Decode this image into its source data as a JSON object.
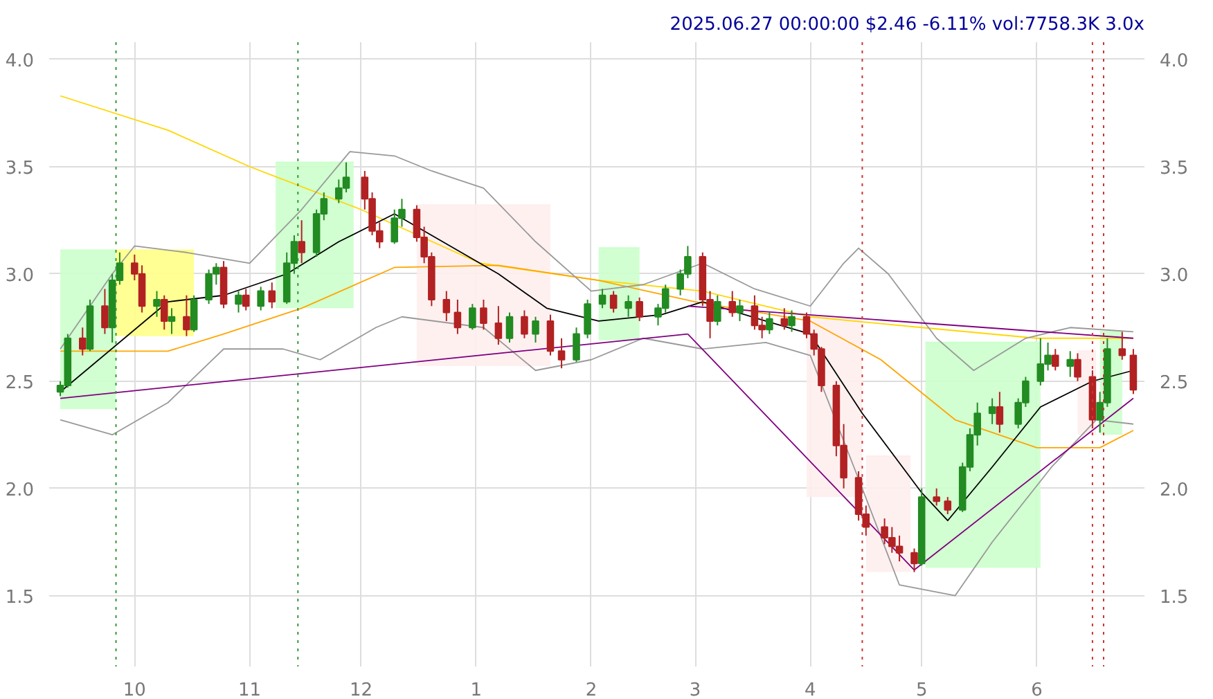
{
  "chart_data": {
    "type": "candlestick",
    "title": "2025.06.27 00:00:00 $2.46 -6.11% vol:7758.3K 3.0x",
    "x": [
      "2024-09-11",
      "2024-09-13",
      "2024-09-17",
      "2024-09-19",
      "2024-09-23",
      "2024-09-25",
      "2024-09-27",
      "2024-10-01",
      "2024-10-03",
      "2024-10-07",
      "2024-10-09",
      "2024-10-11",
      "2024-10-15",
      "2024-10-17",
      "2024-10-21",
      "2024-10-23",
      "2024-10-25",
      "2024-10-29",
      "2024-10-31",
      "2024-11-04",
      "2024-11-07",
      "2024-11-11",
      "2024-11-13",
      "2024-11-15",
      "2024-11-19",
      "2024-11-21",
      "2024-11-25",
      "2024-11-27",
      "2024-12-02",
      "2024-12-04",
      "2024-12-06",
      "2024-12-10",
      "2024-12-12",
      "2024-12-16",
      "2024-12-18",
      "2024-12-20",
      "2024-12-24",
      "2024-12-27",
      "2024-12-31",
      "2025-01-03",
      "2025-01-07",
      "2025-01-10",
      "2025-01-14",
      "2025-01-17",
      "2025-01-21",
      "2025-01-24",
      "2025-01-28",
      "2025-01-31",
      "2025-02-04",
      "2025-02-07",
      "2025-02-11",
      "2025-02-14",
      "2025-02-19",
      "2025-02-21",
      "2025-02-25",
      "2025-02-27",
      "2025-03-03",
      "2025-03-05",
      "2025-03-07",
      "2025-03-11",
      "2025-03-13",
      "2025-03-17",
      "2025-03-19",
      "2025-03-21",
      "2025-03-25",
      "2025-03-27",
      "2025-03-31",
      "2025-04-02",
      "2025-04-04",
      "2025-04-08",
      "2025-04-10",
      "2025-04-14",
      "2025-04-16",
      "2025-04-21",
      "2025-04-23",
      "2025-04-25",
      "2025-04-29",
      "2025-05-01",
      "2025-05-05",
      "2025-05-08",
      "2025-05-12",
      "2025-05-14",
      "2025-05-16",
      "2025-05-20",
      "2025-05-22",
      "2025-05-27",
      "2025-05-29",
      "2025-06-02",
      "2025-06-04",
      "2025-06-06",
      "2025-06-10",
      "2025-06-12",
      "2025-06-16",
      "2025-06-18",
      "2025-06-20",
      "2025-06-24",
      "2025-06-27"
    ],
    "ohlc": [
      [
        2.45,
        2.5,
        2.43,
        2.48
      ],
      [
        2.48,
        2.72,
        2.47,
        2.7
      ],
      [
        2.7,
        2.75,
        2.62,
        2.65
      ],
      [
        2.65,
        2.88,
        2.64,
        2.85
      ],
      [
        2.85,
        2.93,
        2.72,
        2.75
      ],
      [
        2.75,
        3.0,
        2.68,
        2.97
      ],
      [
        2.97,
        3.1,
        2.95,
        3.05
      ],
      [
        3.05,
        3.09,
        2.97,
        3.0
      ],
      [
        3.0,
        3.04,
        2.82,
        2.85
      ],
      [
        2.85,
        2.92,
        2.8,
        2.88
      ],
      [
        2.88,
        2.9,
        2.74,
        2.78
      ],
      [
        2.78,
        2.84,
        2.72,
        2.8
      ],
      [
        2.8,
        2.9,
        2.71,
        2.74
      ],
      [
        2.74,
        2.9,
        2.73,
        2.88
      ],
      [
        2.88,
        3.02,
        2.86,
        3.0
      ],
      [
        3.0,
        3.05,
        2.95,
        3.03
      ],
      [
        3.03,
        3.06,
        2.84,
        2.86
      ],
      [
        2.86,
        2.92,
        2.82,
        2.9
      ],
      [
        2.9,
        2.93,
        2.83,
        2.85
      ],
      [
        2.85,
        2.94,
        2.83,
        2.92
      ],
      [
        2.92,
        2.96,
        2.84,
        2.87
      ],
      [
        2.87,
        3.1,
        2.86,
        3.05
      ],
      [
        3.05,
        3.18,
        3.0,
        3.15
      ],
      [
        3.15,
        3.25,
        3.05,
        3.1
      ],
      [
        3.1,
        3.3,
        3.08,
        3.28
      ],
      [
        3.28,
        3.38,
        3.25,
        3.35
      ],
      [
        3.35,
        3.44,
        3.33,
        3.4
      ],
      [
        3.4,
        3.52,
        3.38,
        3.45
      ],
      [
        3.45,
        3.48,
        3.3,
        3.35
      ],
      [
        3.35,
        3.38,
        3.18,
        3.2
      ],
      [
        3.2,
        3.24,
        3.12,
        3.15
      ],
      [
        3.15,
        3.3,
        3.14,
        3.26
      ],
      [
        3.26,
        3.35,
        3.22,
        3.3
      ],
      [
        3.3,
        3.32,
        3.15,
        3.17
      ],
      [
        3.17,
        3.22,
        3.05,
        3.08
      ],
      [
        3.08,
        3.1,
        2.85,
        2.88
      ],
      [
        2.88,
        2.92,
        2.78,
        2.82
      ],
      [
        2.82,
        2.88,
        2.72,
        2.75
      ],
      [
        2.75,
        2.86,
        2.74,
        2.84
      ],
      [
        2.84,
        2.88,
        2.74,
        2.77
      ],
      [
        2.77,
        2.85,
        2.67,
        2.7
      ],
      [
        2.7,
        2.82,
        2.68,
        2.8
      ],
      [
        2.8,
        2.83,
        2.7,
        2.72
      ],
      [
        2.72,
        2.8,
        2.68,
        2.78
      ],
      [
        2.78,
        2.81,
        2.62,
        2.64
      ],
      [
        2.64,
        2.7,
        2.56,
        2.6
      ],
      [
        2.6,
        2.75,
        2.59,
        2.72
      ],
      [
        2.72,
        2.88,
        2.7,
        2.86
      ],
      [
        2.86,
        2.93,
        2.84,
        2.9
      ],
      [
        2.9,
        2.92,
        2.82,
        2.84
      ],
      [
        2.84,
        2.9,
        2.8,
        2.87
      ],
      [
        2.87,
        2.89,
        2.78,
        2.8
      ],
      [
        2.8,
        2.86,
        2.76,
        2.84
      ],
      [
        2.84,
        2.95,
        2.82,
        2.93
      ],
      [
        2.93,
        3.02,
        2.9,
        3.0
      ],
      [
        3.0,
        3.13,
        2.98,
        3.08
      ],
      [
        3.08,
        3.1,
        2.85,
        2.88
      ],
      [
        2.88,
        2.92,
        2.7,
        2.78
      ],
      [
        2.78,
        2.9,
        2.76,
        2.87
      ],
      [
        2.87,
        2.92,
        2.8,
        2.82
      ],
      [
        2.82,
        2.88,
        2.78,
        2.85
      ],
      [
        2.85,
        2.9,
        2.74,
        2.76
      ],
      [
        2.76,
        2.8,
        2.7,
        2.74
      ],
      [
        2.74,
        2.82,
        2.72,
        2.79
      ],
      [
        2.79,
        2.84,
        2.74,
        2.76
      ],
      [
        2.76,
        2.83,
        2.73,
        2.8
      ],
      [
        2.8,
        2.82,
        2.7,
        2.72
      ],
      [
        2.72,
        2.74,
        2.62,
        2.65
      ],
      [
        2.65,
        2.66,
        2.45,
        2.48
      ],
      [
        2.48,
        2.5,
        2.15,
        2.2
      ],
      [
        2.2,
        2.3,
        2.0,
        2.05
      ],
      [
        2.05,
        2.08,
        1.85,
        1.88
      ],
      [
        1.88,
        1.92,
        1.78,
        1.82
      ],
      [
        1.82,
        1.86,
        1.74,
        1.77
      ],
      [
        1.77,
        1.82,
        1.7,
        1.73
      ],
      [
        1.73,
        1.78,
        1.66,
        1.7
      ],
      [
        1.7,
        1.72,
        1.61,
        1.65
      ],
      [
        1.65,
        2.0,
        1.64,
        1.96
      ],
      [
        1.96,
        2.0,
        1.92,
        1.94
      ],
      [
        1.94,
        1.96,
        1.88,
        1.9
      ],
      [
        1.9,
        2.12,
        1.89,
        2.1
      ],
      [
        2.1,
        2.28,
        2.08,
        2.25
      ],
      [
        2.25,
        2.4,
        2.2,
        2.35
      ],
      [
        2.35,
        2.42,
        2.3,
        2.38
      ],
      [
        2.38,
        2.45,
        2.26,
        2.3
      ],
      [
        2.3,
        2.42,
        2.28,
        2.4
      ],
      [
        2.4,
        2.52,
        2.38,
        2.5
      ],
      [
        2.5,
        2.7,
        2.48,
        2.58
      ],
      [
        2.58,
        2.68,
        2.55,
        2.62
      ],
      [
        2.62,
        2.65,
        2.55,
        2.57
      ],
      [
        2.57,
        2.64,
        2.52,
        2.6
      ],
      [
        2.6,
        2.63,
        2.5,
        2.52
      ],
      [
        2.52,
        2.55,
        2.28,
        2.32
      ],
      [
        2.32,
        2.45,
        2.26,
        2.4
      ],
      [
        2.4,
        2.7,
        2.38,
        2.65
      ],
      [
        2.65,
        2.73,
        2.6,
        2.62
      ],
      [
        2.62,
        2.65,
        2.44,
        2.46
      ]
    ],
    "series": [
      {
        "type": "line",
        "color": "#ccffcc",
        "x": [
          "2024-09-11",
          "2024-09-26"
        ],
        "values": [
          3.11,
          3.11
        ],
        "lower": [
          2.37,
          2.37
        ],
        "upper": [
          3.11,
          3.11
        ]
      },
      {
        "type": "line",
        "color": "#ffff88",
        "x": [
          "2024-09-26",
          "2024-10-17"
        ],
        "values": [
          3.11,
          3.11
        ],
        "lower": [
          2.71,
          2.71
        ],
        "upper": [
          3.11,
          3.11
        ]
      },
      {
        "type": "line",
        "color": "#ccffcc",
        "x": [
          "2024-11-08",
          "2024-11-29"
        ],
        "values": [
          3.52,
          3.52
        ],
        "lower": [
          2.84,
          2.84
        ],
        "upper": [
          3.52,
          3.52
        ]
      },
      {
        "type": "line",
        "color": "#ffeeee",
        "x": [
          "2024-12-16",
          "2025-01-21"
        ],
        "values": [
          3.32,
          3.32
        ],
        "lower": [
          2.57,
          2.57
        ],
        "upper": [
          3.32,
          3.32
        ]
      },
      {
        "type": "line",
        "color": "#ccffcc",
        "x": [
          "2025-02-03",
          "2025-02-14"
        ],
        "values": [
          3.12,
          3.12
        ],
        "lower": [
          2.69,
          2.69
        ],
        "upper": [
          3.12,
          3.12
        ]
      },
      {
        "type": "line",
        "color": "#ffeeee",
        "x": [
          "2025-03-31",
          "2025-04-15"
        ],
        "values": [
          2.8,
          2.8
        ],
        "lower": [
          1.96,
          1.96
        ],
        "upper": [
          2.8,
          2.8
        ]
      },
      {
        "type": "line",
        "color": "#ffeeee",
        "x": [
          "2025-04-16",
          "2025-04-28"
        ],
        "values": [
          2.15,
          2.15
        ],
        "lower": [
          1.61,
          1.61
        ],
        "upper": [
          2.15,
          2.15
        ]
      },
      {
        "type": "line",
        "color": "#ccffcc",
        "x": [
          "2025-05-02",
          "2025-06-02"
        ],
        "values": [
          2.68,
          2.68
        ],
        "lower": [
          1.63,
          1.63
        ],
        "upper": [
          2.68,
          2.68
        ]
      },
      {
        "type": "line",
        "color": "#ffeeee",
        "x": [
          "2025-06-12",
          "2025-06-17"
        ],
        "values": [
          2.64,
          2.64
        ],
        "lower": [
          2.25,
          2.25
        ],
        "upper": [
          2.64,
          2.64
        ]
      },
      {
        "type": "line",
        "color": "#ccffcc",
        "x": [
          "2025-06-18",
          "2025-06-24"
        ],
        "values": [
          2.73,
          2.73
        ],
        "lower": [
          2.25,
          2.25
        ],
        "upper": [
          2.73,
          2.73
        ]
      },
      {
        "type": "line",
        "color": "#ffd700",
        "x": [
          "2024-09-11",
          "2024-10-10",
          "2024-11-01",
          "2024-12-01",
          "2025-01-02",
          "2025-02-03",
          "2025-03-03",
          "2025-04-01",
          "2025-05-01",
          "2025-06-01",
          "2025-06-27"
        ],
        "values": [
          3.83,
          3.67,
          3.5,
          3.3,
          3.05,
          2.97,
          2.92,
          2.8,
          2.75,
          2.7,
          2.7
        ]
      },
      {
        "type": "line",
        "color": "#ffa500",
        "x": [
          "2024-09-11",
          "2024-10-10",
          "2024-10-25",
          "2024-11-15",
          "2024-12-10",
          "2025-01-07",
          "2025-02-03",
          "2025-03-01",
          "2025-04-01",
          "2025-04-20",
          "2025-05-10",
          "2025-06-01",
          "2025-06-18",
          "2025-06-27"
        ],
        "values": [
          2.64,
          2.64,
          2.72,
          2.84,
          3.03,
          3.04,
          2.97,
          2.87,
          2.78,
          2.6,
          2.32,
          2.19,
          2.19,
          2.27
        ]
      },
      {
        "type": "line",
        "color": "#000000",
        "x": [
          "2024-09-11",
          "2024-10-10",
          "2024-10-25",
          "2024-11-11",
          "2024-11-25",
          "2024-12-10",
          "2024-12-20",
          "2025-01-07",
          "2025-01-20",
          "2025-02-03",
          "2025-02-20",
          "2025-03-03",
          "2025-03-20",
          "2025-04-01",
          "2025-04-15",
          "2025-05-01",
          "2025-05-08",
          "2025-05-20",
          "2025-06-02",
          "2025-06-16",
          "2025-06-27"
        ],
        "values": [
          2.45,
          2.87,
          2.9,
          3.0,
          3.15,
          3.28,
          3.18,
          3.0,
          2.84,
          2.78,
          2.81,
          2.87,
          2.78,
          2.72,
          2.35,
          1.98,
          1.85,
          2.1,
          2.38,
          2.5,
          2.55
        ]
      },
      {
        "type": "line",
        "color": "#999999",
        "x": [
          "2024-09-11",
          "2024-09-25",
          "2024-10-01",
          "2024-10-15",
          "2024-11-01",
          "2024-11-15",
          "2024-11-28",
          "2024-12-10",
          "2024-12-20",
          "2025-01-03",
          "2025-01-17",
          "2025-02-01",
          "2025-02-15",
          "2025-03-03",
          "2025-03-17",
          "2025-04-01",
          "2025-04-10",
          "2025-04-14",
          "2025-04-22",
          "2025-05-05",
          "2025-05-15",
          "2025-05-29",
          "2025-06-10",
          "2025-06-27"
        ],
        "values": [
          2.65,
          3.0,
          3.13,
          3.1,
          3.05,
          3.3,
          3.57,
          3.55,
          3.48,
          3.4,
          3.15,
          2.92,
          2.95,
          3.05,
          2.93,
          2.85,
          3.05,
          3.12,
          3.0,
          2.7,
          2.55,
          2.7,
          2.75,
          2.73
        ]
      },
      {
        "type": "line",
        "color": "#999999",
        "x": [
          "2024-09-11",
          "2024-09-25",
          "2024-10-10",
          "2024-10-25",
          "2024-11-10",
          "2024-11-20",
          "2024-12-05",
          "2024-12-12",
          "2025-01-03",
          "2025-01-17",
          "2025-02-01",
          "2025-02-15",
          "2025-03-03",
          "2025-03-20",
          "2025-04-01",
          "2025-04-15",
          "2025-04-25",
          "2025-05-10",
          "2025-05-20",
          "2025-06-05",
          "2025-06-17",
          "2025-06-27"
        ],
        "values": [
          2.32,
          2.25,
          2.4,
          2.65,
          2.65,
          2.6,
          2.75,
          2.8,
          2.75,
          2.55,
          2.6,
          2.7,
          2.65,
          2.68,
          2.62,
          2.0,
          1.55,
          1.5,
          1.75,
          2.1,
          2.32,
          2.3
        ]
      },
      {
        "type": "line",
        "color": "#800080",
        "x": [
          "2024-09-11",
          "2025-02-27"
        ],
        "values": [
          2.42,
          2.72
        ]
      },
      {
        "type": "line",
        "color": "#800080",
        "x": [
          "2025-02-27",
          "2025-06-27"
        ],
        "values": [
          2.85,
          2.7
        ]
      },
      {
        "type": "line",
        "color": "#800080",
        "x": [
          "2025-02-27",
          "2025-04-29",
          "2025-06-27"
        ],
        "values": [
          2.72,
          1.62,
          2.42
        ]
      }
    ],
    "ref_lines": [
      {
        "axis": "x",
        "value": "2024-09-26",
        "color": "#339933",
        "line_style": "dotted"
      },
      {
        "axis": "x",
        "value": "2024-11-14",
        "color": "#339933",
        "line_style": "dotted"
      },
      {
        "axis": "x",
        "value": "2025-04-15",
        "color": "#cc3333",
        "line_style": "dotted"
      },
      {
        "axis": "x",
        "value": "2025-06-16",
        "color": "#cc3333",
        "line_style": "dotted"
      },
      {
        "axis": "x",
        "value": "2025-06-19",
        "color": "#cc3333",
        "line_style": "dotted"
      }
    ],
    "xlim": [
      "2024-09-08",
      "2025-06-30"
    ],
    "xticks": [
      {
        "value": "2024-10-01",
        "label": "10"
      },
      {
        "value": "2024-11-01",
        "label": "11"
      },
      {
        "value": "2024-12-01",
        "label": "12"
      },
      {
        "value": "2025-01-01",
        "label": "1"
      },
      {
        "value": "2025-02-01",
        "label": "2"
      },
      {
        "value": "2025-03-01",
        "label": "3"
      },
      {
        "value": "2025-04-01",
        "label": "4"
      },
      {
        "value": "2025-05-01",
        "label": "5"
      },
      {
        "value": "2025-06-01",
        "label": "6"
      }
    ],
    "ylim": [
      1.17,
      4.08
    ],
    "yticks": [
      1.5,
      {
        "value": 2,
        "label": "2.0"
      },
      2.5,
      {
        "value": 3,
        "label": "3.0"
      },
      3.5,
      {
        "value": 4,
        "label": "4.0"
      }
    ],
    "y2lim": [
      1.17,
      4.08
    ],
    "y2ticks": [
      1.5,
      {
        "value": 2,
        "label": "2.0"
      },
      2.5,
      {
        "value": 3,
        "label": "3.0"
      },
      3.5,
      {
        "value": 4,
        "label": "4.0"
      }
    ],
    "grid": true
  }
}
